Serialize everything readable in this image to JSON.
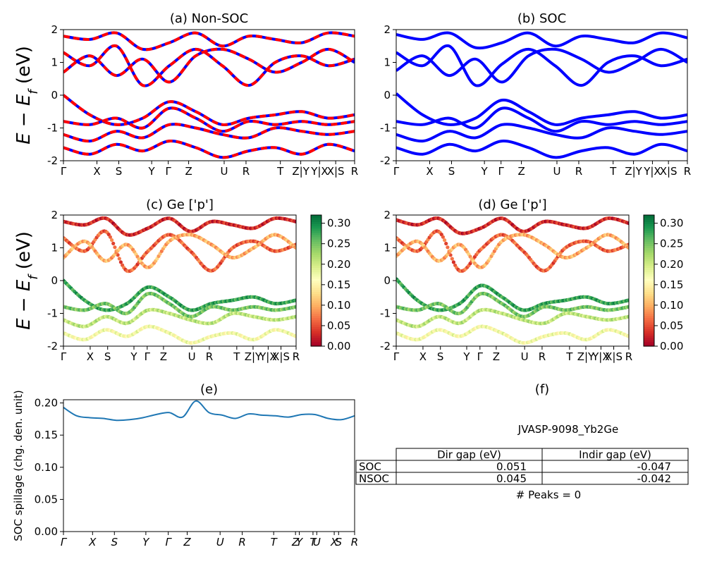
{
  "figure": {
    "ylabel_band": "$E - E_f$ (eV)",
    "ylabel_band_display": {
      "main": "E − E",
      "sub": "f",
      "tail": " (eV)"
    }
  },
  "kpath": {
    "band": [
      "Γ",
      "X",
      "S",
      "Y",
      "Γ",
      "Z",
      "U",
      "R",
      "T",
      "Z|Y",
      "Y|X",
      "X|S",
      "R"
    ],
    "band_note": "",
    "spillage": [
      "Γ",
      "X",
      "S",
      "Y",
      "Γ",
      "Z",
      "U",
      "R",
      "T",
      "Z",
      "Y",
      "T",
      "U",
      "X",
      "S",
      "R"
    ]
  },
  "colors": {
    "nonsoc_primary": "#0000ff",
    "nonsoc_secondary": "#ff0000",
    "soc": "#0000ff",
    "spillage_line": "#1f77b4",
    "colormap": "RdYlGn"
  },
  "colorbar": {
    "ticks": [
      "0.00",
      "0.05",
      "0.10",
      "0.15",
      "0.20",
      "0.25",
      "0.30"
    ]
  },
  "table": {
    "title": "JVASP-9098_Yb2Ge",
    "headers": [
      "",
      "Dir gap (eV)",
      "Indir gap (eV)"
    ],
    "rows": [
      [
        "SOC",
        "0.051",
        "-0.047"
      ],
      [
        "NSOC",
        "0.045",
        "-0.042"
      ]
    ],
    "peaks": "# Peaks = 0"
  },
  "chart_data": [
    {
      "id": "a",
      "type": "line",
      "title": "(a) Non-SOC",
      "ylabel": "E − E_f (eV)",
      "ylim": [
        -2,
        2
      ],
      "yticks": [
        -2,
        -1,
        0,
        1,
        2
      ],
      "xticks": [
        "Γ",
        "X",
        "S",
        "Y",
        "Γ",
        "Z",
        "U",
        "R",
        "T",
        "Z|Y",
        "Y|X",
        "X|S",
        "R"
      ],
      "series": [
        {
          "values": [
            1.8,
            1.7,
            1.9,
            1.4,
            1.6,
            1.9,
            1.5,
            1.8,
            1.7,
            1.6,
            1.9,
            1.8
          ]
        },
        {
          "values": [
            1.3,
            0.9,
            1.5,
            0.3,
            0.9,
            1.4,
            0.9,
            0.3,
            1.0,
            1.2,
            0.9,
            1.1
          ]
        },
        {
          "values": [
            0.7,
            1.2,
            0.6,
            1.1,
            0.4,
            1.2,
            1.4,
            1.1,
            0.7,
            1.0,
            1.4,
            1.0
          ]
        },
        {
          "values": [
            0.0,
            -0.6,
            -0.9,
            -0.7,
            -0.2,
            -0.5,
            -0.9,
            -0.7,
            -0.6,
            -0.5,
            -0.7,
            -0.6
          ]
        },
        {
          "values": [
            -0.8,
            -0.9,
            -0.7,
            -1.0,
            -0.4,
            -0.7,
            -1.1,
            -0.8,
            -0.9,
            -0.8,
            -0.9,
            -0.8
          ]
        },
        {
          "values": [
            -1.2,
            -1.4,
            -1.1,
            -1.3,
            -0.9,
            -1.0,
            -1.2,
            -1.3,
            -1.0,
            -1.1,
            -1.2,
            -1.1
          ]
        },
        {
          "values": [
            -1.6,
            -1.8,
            -1.5,
            -1.7,
            -1.4,
            -1.6,
            -1.9,
            -1.7,
            -1.6,
            -1.8,
            -1.5,
            -1.7
          ]
        }
      ]
    },
    {
      "id": "b",
      "type": "line",
      "title": "(b) SOC",
      "ylim": [
        -2,
        2
      ],
      "yticks": [
        -2,
        -1,
        0,
        1,
        2
      ],
      "xticks": [
        "Γ",
        "X",
        "S",
        "Y",
        "Γ",
        "Z",
        "U",
        "R",
        "T",
        "Z|Y",
        "Y|X",
        "X|S",
        "R"
      ],
      "series": [
        {
          "values": [
            1.85,
            1.7,
            1.9,
            1.45,
            1.6,
            1.9,
            1.5,
            1.8,
            1.7,
            1.6,
            1.9,
            1.75
          ]
        },
        {
          "values": [
            1.3,
            0.9,
            1.5,
            0.3,
            0.95,
            1.4,
            0.9,
            0.3,
            1.0,
            1.2,
            0.9,
            1.1
          ]
        },
        {
          "values": [
            0.75,
            1.2,
            0.6,
            1.1,
            0.4,
            1.2,
            1.4,
            1.1,
            0.7,
            1.0,
            1.4,
            1.0
          ]
        },
        {
          "values": [
            0.05,
            -0.6,
            -0.9,
            -0.7,
            -0.15,
            -0.5,
            -0.9,
            -0.7,
            -0.6,
            -0.5,
            -0.7,
            -0.6
          ]
        },
        {
          "values": [
            -0.8,
            -0.9,
            -0.7,
            -1.0,
            -0.4,
            -0.7,
            -1.1,
            -0.8,
            -0.9,
            -0.8,
            -0.9,
            -0.8
          ]
        },
        {
          "values": [
            -1.2,
            -1.4,
            -1.1,
            -1.3,
            -0.9,
            -1.0,
            -1.2,
            -1.3,
            -1.0,
            -1.1,
            -1.2,
            -1.1
          ]
        },
        {
          "values": [
            -1.6,
            -1.8,
            -1.5,
            -1.7,
            -1.4,
            -1.6,
            -1.9,
            -1.7,
            -1.6,
            -1.8,
            -1.5,
            -1.7
          ]
        }
      ]
    },
    {
      "id": "c",
      "type": "scatter",
      "title": "(c)  Ge ['p']",
      "ylabel": "E − E_f (eV)",
      "ylim": [
        -2,
        2
      ],
      "yticks": [
        -2,
        -1,
        0,
        1,
        2
      ],
      "xticks": [
        "Γ",
        "X",
        "S",
        "Y",
        "Γ",
        "Z",
        "U",
        "R",
        "T",
        "Z|Y",
        "Y|X",
        "X|S",
        "R"
      ],
      "colorbar": {
        "range": [
          0.0,
          0.32
        ],
        "ticks": [
          0.0,
          0.05,
          0.1,
          0.15,
          0.2,
          0.25,
          0.3
        ]
      },
      "series": [
        {
          "values": [
            1.8,
            1.7,
            1.9,
            1.4,
            1.6,
            1.9,
            1.5,
            1.8,
            1.7,
            1.6,
            1.9,
            1.8
          ],
          "weight": 0.03
        },
        {
          "values": [
            1.3,
            0.9,
            1.5,
            0.3,
            0.9,
            1.4,
            0.9,
            0.3,
            1.0,
            1.2,
            0.9,
            1.1
          ],
          "weight": 0.06
        },
        {
          "values": [
            0.7,
            1.2,
            0.6,
            1.1,
            0.4,
            1.2,
            1.4,
            1.1,
            0.7,
            1.0,
            1.4,
            1.0
          ],
          "weight": 0.1
        },
        {
          "values": [
            0.0,
            -0.6,
            -0.9,
            -0.7,
            -0.2,
            -0.5,
            -0.9,
            -0.7,
            -0.6,
            -0.5,
            -0.7,
            -0.6
          ],
          "weight": 0.28
        },
        {
          "values": [
            -0.8,
            -0.9,
            -0.7,
            -1.0,
            -0.4,
            -0.7,
            -1.1,
            -0.8,
            -0.9,
            -0.8,
            -0.9,
            -0.8
          ],
          "weight": 0.25
        },
        {
          "values": [
            -1.2,
            -1.4,
            -1.1,
            -1.3,
            -0.9,
            -1.0,
            -1.2,
            -1.3,
            -1.0,
            -1.1,
            -1.2,
            -1.1
          ],
          "weight": 0.21
        },
        {
          "values": [
            -1.6,
            -1.8,
            -1.5,
            -1.7,
            -1.4,
            -1.6,
            -1.9,
            -1.7,
            -1.6,
            -1.8,
            -1.5,
            -1.7
          ],
          "weight": 0.17
        }
      ]
    },
    {
      "id": "d",
      "type": "scatter",
      "title": "(d) Ge ['p']",
      "ylim": [
        -2,
        2
      ],
      "yticks": [
        -2,
        -1,
        0,
        1,
        2
      ],
      "xticks": [
        "Γ",
        "X",
        "S",
        "Y",
        "Γ",
        "Z",
        "U",
        "R",
        "T",
        "Z|Y",
        "Y|X",
        "X|S",
        "R"
      ],
      "colorbar": {
        "range": [
          0.0,
          0.32
        ],
        "ticks": [
          0.0,
          0.05,
          0.1,
          0.15,
          0.2,
          0.25,
          0.3
        ]
      },
      "series": [
        {
          "values": [
            1.85,
            1.7,
            1.9,
            1.45,
            1.6,
            1.9,
            1.5,
            1.8,
            1.7,
            1.6,
            1.9,
            1.75
          ],
          "weight": 0.03
        },
        {
          "values": [
            1.3,
            0.9,
            1.5,
            0.3,
            0.95,
            1.4,
            0.9,
            0.3,
            1.0,
            1.2,
            0.9,
            1.1
          ],
          "weight": 0.06
        },
        {
          "values": [
            0.75,
            1.2,
            0.6,
            1.1,
            0.4,
            1.2,
            1.4,
            1.1,
            0.7,
            1.0,
            1.4,
            1.0
          ],
          "weight": 0.1
        },
        {
          "values": [
            0.05,
            -0.6,
            -0.9,
            -0.7,
            -0.15,
            -0.5,
            -0.9,
            -0.7,
            -0.6,
            -0.5,
            -0.7,
            -0.6
          ],
          "weight": 0.28
        },
        {
          "values": [
            -0.8,
            -0.9,
            -0.7,
            -1.0,
            -0.4,
            -0.7,
            -1.1,
            -0.8,
            -0.9,
            -0.8,
            -0.9,
            -0.8
          ],
          "weight": 0.25
        },
        {
          "values": [
            -1.2,
            -1.4,
            -1.1,
            -1.3,
            -0.9,
            -1.0,
            -1.2,
            -1.3,
            -1.0,
            -1.1,
            -1.2,
            -1.1
          ],
          "weight": 0.21
        },
        {
          "values": [
            -1.6,
            -1.8,
            -1.5,
            -1.7,
            -1.4,
            -1.6,
            -1.9,
            -1.7,
            -1.6,
            -1.8,
            -1.5,
            -1.7
          ],
          "weight": 0.17
        }
      ]
    },
    {
      "id": "e",
      "type": "line",
      "title": "(e)",
      "ylabel": "SOC spillage (chg. den. unit)",
      "ylim": [
        0.0,
        0.205
      ],
      "yticks": [
        0.0,
        0.05,
        0.1,
        0.15,
        0.2
      ],
      "xticks": [
        "Γ",
        "X",
        "S",
        "Y",
        "Γ",
        "Z",
        "U",
        "R",
        "T",
        "Z",
        "Y",
        "T",
        "U",
        "X",
        "S",
        "R"
      ],
      "series": [
        {
          "values": [
            0.193,
            0.18,
            0.177,
            0.176,
            0.173,
            0.174,
            0.177,
            0.182,
            0.185,
            0.178,
            0.203,
            0.185,
            0.181,
            0.176,
            0.183,
            0.181,
            0.18,
            0.178,
            0.182,
            0.182,
            0.176,
            0.174,
            0.18
          ]
        }
      ]
    }
  ]
}
